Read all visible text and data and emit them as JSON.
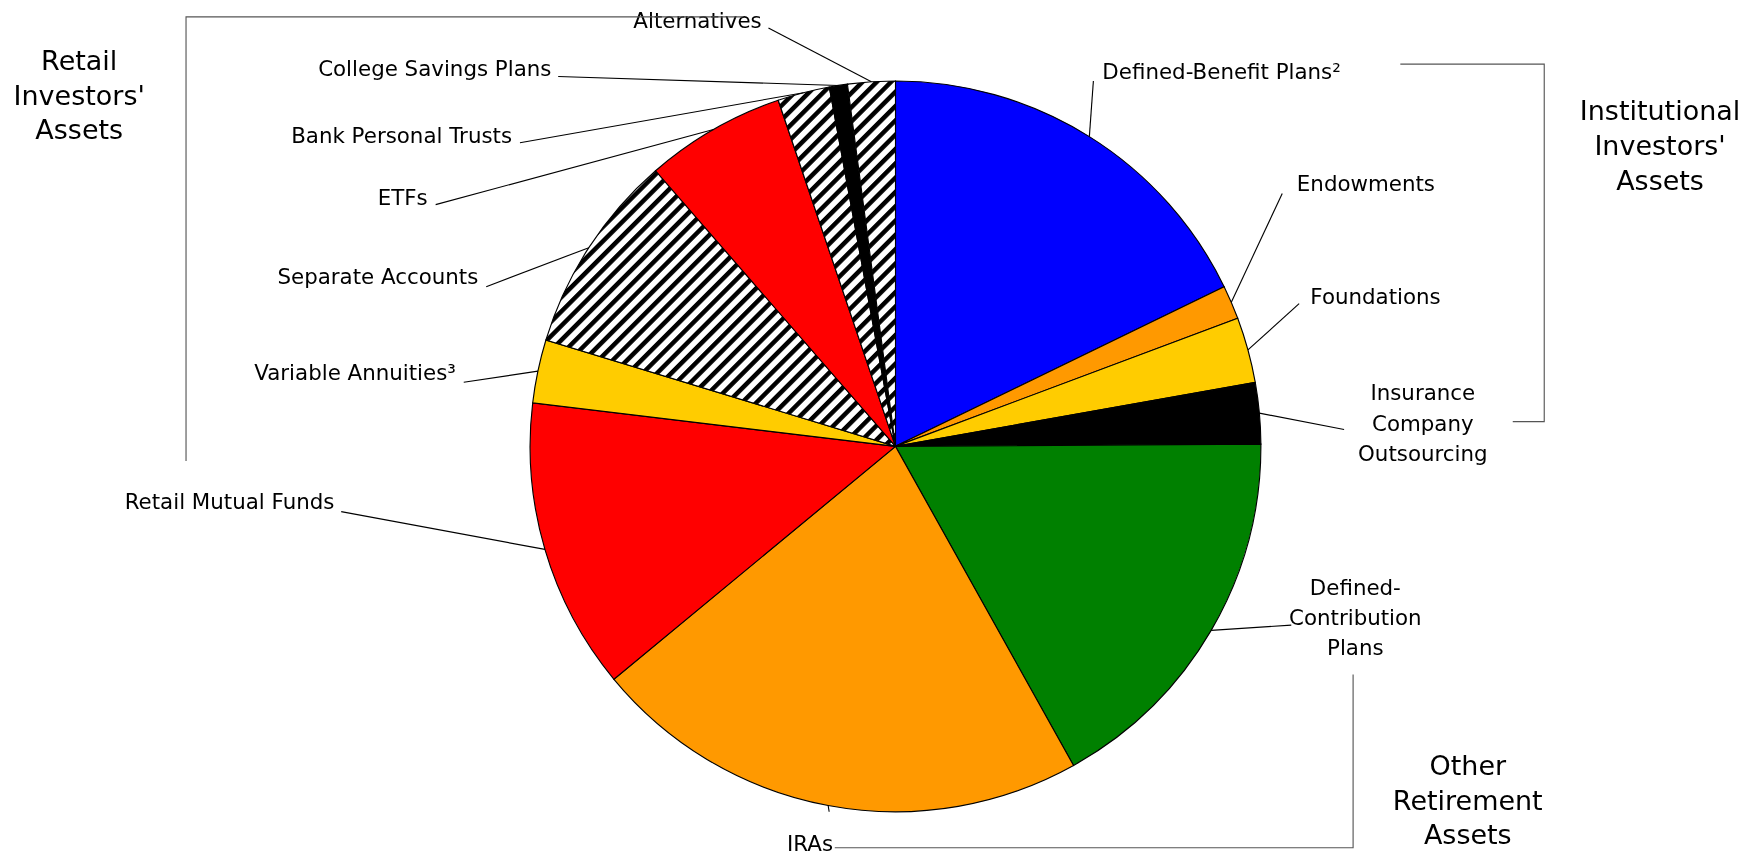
{
  "chart_data": {
    "type": "pie",
    "categories": [
      "Defined-Benefit Plans²",
      "Endowments",
      "Foundations",
      "Insurance Company Outsourcing",
      "Defined-Contribution Plans",
      "IRAs",
      "Retail Mutual Funds",
      "Variable Annuities³",
      "Separate Accounts",
      "ETFs",
      "Bank Personal Trusts",
      "College Savings Plans",
      "Alternatives"
    ],
    "values": [
      17.8,
      1.5,
      2.9,
      2.7,
      17.0,
      22.1,
      12.9,
      2.8,
      8.9,
      6.2,
      2.3,
      0.8,
      2.1
    ],
    "colors": [
      "#0000ff",
      "#ff9900",
      "#ffcc00",
      "#000000",
      "#008000",
      "#ff9900",
      "#ff0000",
      "#ffcc00",
      "#ffffff",
      "#ff0000",
      "#ffffff",
      "#000000",
      "#ffffff"
    ],
    "annotations": [
      "Retail Investors' Assets",
      "Institutional Investors' Assets",
      "Other Retirement Assets"
    ]
  }
}
